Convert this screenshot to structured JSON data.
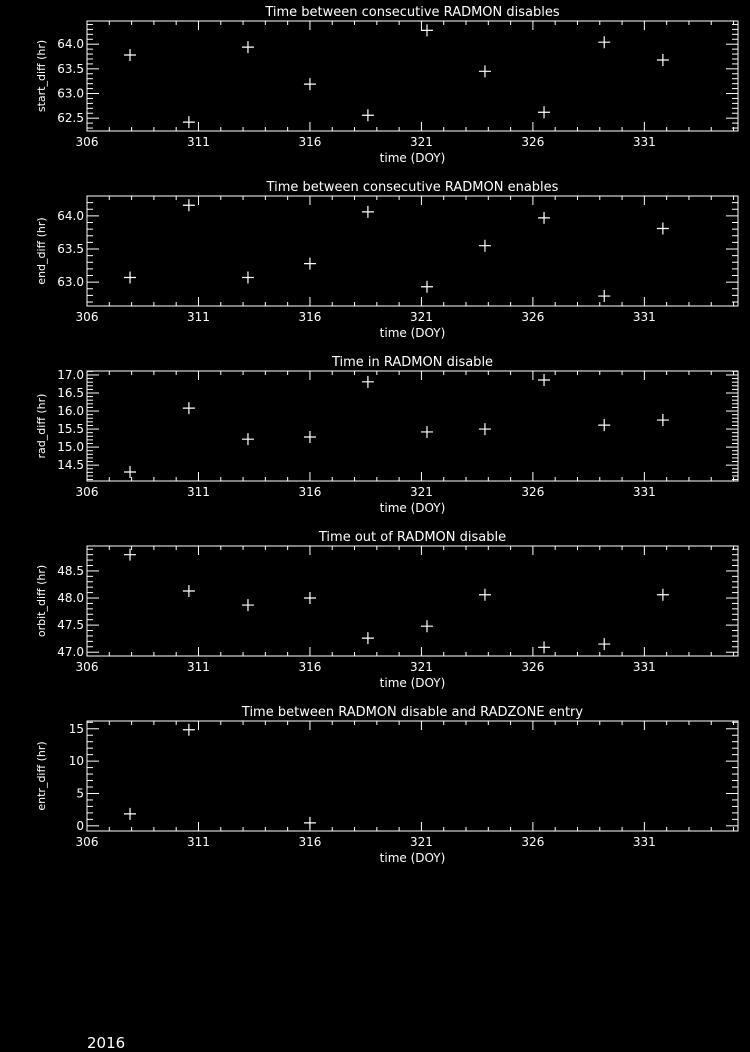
{
  "footer_text": "2016",
  "colors": {
    "background": "#000000",
    "foreground": "#ffffff"
  },
  "chart_data": [
    {
      "type": "scatter",
      "marker": "plus",
      "title": "Time between consecutive RADMON disables",
      "xlabel": "time (DOY)",
      "ylabel": "start_diff (hr)",
      "xlim": [
        306,
        335.2
      ],
      "ylim": [
        62.24,
        64.47
      ],
      "xticks": [
        306,
        311,
        316,
        321,
        326,
        331
      ],
      "yticks": [
        62.5,
        63.0,
        63.5,
        64.0
      ],
      "ydec": 1,
      "yminor": 0.1,
      "x": [
        307.93,
        310.57,
        313.22,
        316.0,
        318.6,
        321.25,
        323.85,
        326.5,
        329.2,
        331.83
      ],
      "y": [
        63.78,
        62.42,
        63.94,
        63.19,
        62.56,
        64.28,
        63.45,
        62.62,
        64.04,
        63.68
      ]
    },
    {
      "type": "scatter",
      "marker": "plus",
      "title": "Time between consecutive RADMON enables",
      "xlabel": "time (DOY)",
      "ylabel": "end_diff (hr)",
      "xlim": [
        306,
        335.2
      ],
      "ylim": [
        62.64,
        64.3
      ],
      "xticks": [
        306,
        311,
        316,
        321,
        326,
        331
      ],
      "yticks": [
        63.0,
        63.5,
        64.0
      ],
      "ydec": 1,
      "yminor": 0.1,
      "x": [
        307.93,
        310.57,
        313.22,
        316.0,
        318.6,
        321.25,
        323.85,
        326.5,
        329.2,
        331.83
      ],
      "y": [
        63.07,
        64.16,
        63.07,
        63.28,
        64.06,
        62.93,
        63.55,
        63.97,
        62.79,
        63.81
      ]
    },
    {
      "type": "scatter",
      "marker": "plus",
      "title": "Time in RADMON disable",
      "xlabel": "time (DOY)",
      "ylabel": "rad_diff (hr)",
      "xlim": [
        306,
        335.2
      ],
      "ylim": [
        14.06,
        17.11
      ],
      "xticks": [
        306,
        311,
        316,
        321,
        326,
        331
      ],
      "yticks": [
        14.5,
        15.0,
        15.5,
        16.0,
        16.5,
        17.0
      ],
      "ydec": 1,
      "yminor": 0.1,
      "x": [
        307.93,
        310.57,
        313.22,
        316.0,
        318.6,
        321.25,
        323.85,
        326.5,
        329.2,
        331.83
      ],
      "y": [
        14.31,
        16.08,
        15.22,
        15.28,
        16.81,
        15.42,
        15.5,
        16.86,
        15.61,
        15.75
      ]
    },
    {
      "type": "scatter",
      "marker": "plus",
      "title": "Time out of RADMON disable",
      "xlabel": "time (DOY)",
      "ylabel": "orbit_diff (hr)",
      "xlim": [
        306,
        335.2
      ],
      "ylim": [
        46.93,
        48.96
      ],
      "xticks": [
        306,
        311,
        316,
        321,
        326,
        331
      ],
      "yticks": [
        47.0,
        47.5,
        48.0,
        48.5
      ],
      "ydec": 1,
      "yminor": 0.1,
      "x": [
        307.93,
        310.57,
        313.22,
        316.0,
        318.6,
        321.25,
        323.85,
        326.5,
        329.2,
        331.83
      ],
      "y": [
        48.8,
        48.13,
        47.87,
        48.0,
        47.26,
        47.48,
        48.06,
        47.09,
        47.15,
        48.06
      ]
    },
    {
      "type": "scatter",
      "marker": "plus",
      "title": "Time between RADMON disable and RADZONE entry",
      "xlabel": "time (DOY)",
      "ylabel": "entr_diff (hr)",
      "xlim": [
        306,
        335.2
      ],
      "ylim": [
        -0.8,
        16.2
      ],
      "xticks": [
        306,
        311,
        316,
        321,
        326,
        331
      ],
      "yticks": [
        0,
        5,
        10,
        15
      ],
      "ydec": 0,
      "yminor": 1,
      "x": [
        307.93,
        310.57,
        316.0
      ],
      "y": [
        1.85,
        14.85,
        0.46
      ]
    }
  ]
}
